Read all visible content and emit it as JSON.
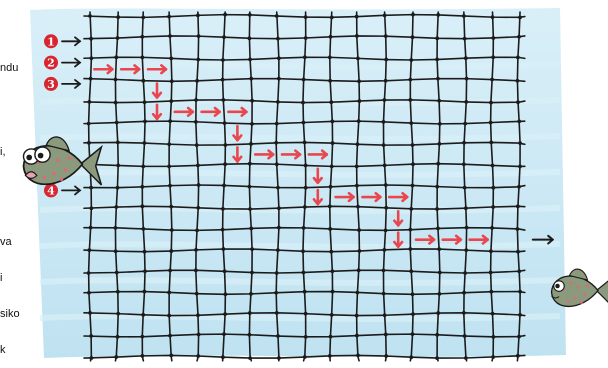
{
  "puzzle": {
    "grid": {
      "cols": 16,
      "rows": 16
    },
    "entries": [
      {
        "label": "1",
        "row": 1
      },
      {
        "label": "2",
        "row": 2
      },
      {
        "label": "3",
        "row": 3
      },
      {
        "label": "4",
        "row": 8
      }
    ],
    "path": [
      {
        "dir": "right",
        "c": 0,
        "r": 2
      },
      {
        "dir": "right",
        "c": 1,
        "r": 2
      },
      {
        "dir": "right",
        "c": 2,
        "r": 2
      },
      {
        "dir": "down",
        "c": 2,
        "r": 3
      },
      {
        "dir": "down",
        "c": 2,
        "r": 4
      },
      {
        "dir": "right",
        "c": 3,
        "r": 4
      },
      {
        "dir": "right",
        "c": 4,
        "r": 4
      },
      {
        "dir": "right",
        "c": 5,
        "r": 4
      },
      {
        "dir": "down",
        "c": 5,
        "r": 5
      },
      {
        "dir": "down",
        "c": 5,
        "r": 6
      },
      {
        "dir": "right",
        "c": 6,
        "r": 6
      },
      {
        "dir": "right",
        "c": 7,
        "r": 6
      },
      {
        "dir": "right",
        "c": 8,
        "r": 6
      },
      {
        "dir": "down",
        "c": 8,
        "r": 7
      },
      {
        "dir": "down",
        "c": 8,
        "r": 8
      },
      {
        "dir": "right",
        "c": 9,
        "r": 8
      },
      {
        "dir": "right",
        "c": 10,
        "r": 8
      },
      {
        "dir": "right",
        "c": 11,
        "r": 8
      },
      {
        "dir": "down",
        "c": 11,
        "r": 9
      },
      {
        "dir": "down",
        "c": 11,
        "r": 10
      },
      {
        "dir": "right",
        "c": 12,
        "r": 10
      },
      {
        "dir": "right",
        "c": 13,
        "r": 10
      },
      {
        "dir": "right",
        "c": 14,
        "r": 10
      }
    ],
    "exit_row": 10,
    "colors": {
      "water": "#bfe2f1",
      "water_light": "#d9eff8",
      "net": "#1b1b1b",
      "arrow": "#e8474e",
      "badge": "#d7262f",
      "fish_body": "#8b9a7c",
      "fish_spots": "#e2667a"
    },
    "icons": [
      "fish-icon",
      "net-grid",
      "arrow-right-icon",
      "arrow-down-icon"
    ]
  },
  "side_text": {
    "lines_a": [
      "ndu",
      "",
      "i,"
    ],
    "lines_b": [
      "va",
      "i",
      "siko",
      "k"
    ]
  }
}
